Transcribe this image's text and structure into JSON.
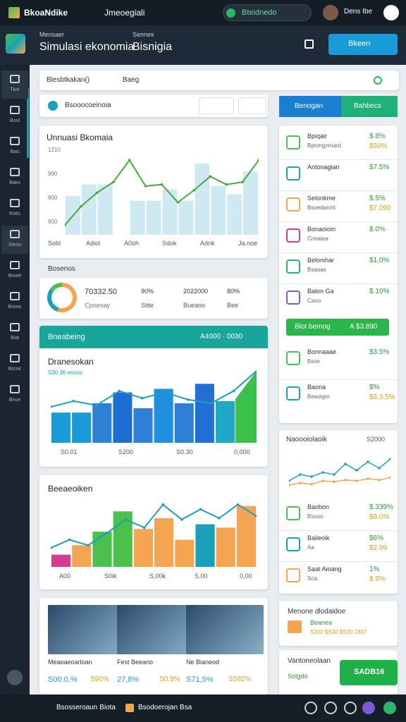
{
  "topbar": {
    "brand": "BkoaNdike",
    "tab": "Jmeoegiali",
    "status": "Bteidnedo",
    "user": "Dens Ibe"
  },
  "header": {
    "label1": "Mensaer",
    "title1": "Simulasi ekonomia",
    "label2": "Sennes",
    "title2": "Bisnigia",
    "button": "Bkeen"
  },
  "sidebar": [
    "Tkol",
    "Bool",
    "Bais",
    "Baks",
    "Rotls",
    "Srkoo",
    "Bnoet",
    "Bnoiis",
    "Blat",
    "Brcoir",
    "Bnoe"
  ],
  "search": {
    "text": "Blesbtkakan()",
    "filter": "Baeg"
  },
  "filter": "Bsooocoeinoia",
  "chart1": {
    "title": "Unnuasi Bkomaia",
    "ylabels": [
      "1210",
      "990",
      "900",
      "900"
    ],
    "categories": [
      "Sobl",
      "Adiol",
      "A0oh",
      "Sdok",
      "Adnk",
      "Ja.noe"
    ],
    "ylim": [
      0,
      100
    ],
    "bars": [
      48,
      62,
      62,
      0,
      42,
      42,
      56,
      42,
      88,
      60,
      50,
      78
    ],
    "line": [
      12,
      35,
      52,
      65,
      92,
      60,
      62,
      40,
      55,
      72,
      62,
      65,
      92
    ]
  },
  "summary": {
    "title": "Bosenos",
    "value": "70332.50",
    "sub": "Cpoeoay",
    "donut": [
      55,
      30,
      15
    ],
    "legend": [
      {
        "value": "90%",
        "label": "Sitte"
      },
      {
        "value": "2022000",
        "label": "Bueaoo"
      },
      {
        "value": "80%",
        "label": "Bee"
      }
    ]
  },
  "panel2": {
    "header": "Bneabeing",
    "header_right": "A4000 · 0030",
    "title": "Dranesokan",
    "legend": "S30 36 esons",
    "categories": [
      "S0.01",
      "S200",
      "S0.30",
      "0,000"
    ],
    "ylim": [
      0,
      100
    ],
    "bars": [
      42,
      42,
      55,
      70,
      48,
      75,
      55,
      82,
      58
    ],
    "colors": [
      "#1a9ad6",
      "#1a9ad6",
      "#2f7fd6",
      "#1b6fd0",
      "#2f7fd6",
      "#1f8fe0",
      "#2f7fd6",
      "#1f6fd6",
      "#20a8c8"
    ],
    "line": [
      50,
      58,
      52,
      72,
      62,
      70,
      60,
      55,
      72,
      100
    ]
  },
  "panel3": {
    "title": "Beeaeoiken",
    "categories": [
      "A00",
      "S0ik",
      "S,00k",
      "S,00",
      "0,00"
    ],
    "ylim": [
      0,
      100
    ],
    "bars": [
      18,
      32,
      52,
      82,
      56,
      72,
      40,
      63,
      58,
      90
    ],
    "colors": [
      "#d63c8c",
      "#f5a552",
      "#4cc04c",
      "#4cc04c",
      "#f5a552",
      "#f5a552",
      "#f5a552",
      "#1aa0b8",
      "#f5a552",
      "#f5a552"
    ],
    "line": [
      28,
      40,
      32,
      50,
      70,
      58,
      92,
      70,
      85,
      72,
      92,
      75
    ]
  },
  "products": [
    {
      "title": "Meaoaeoarloan",
      "value": "S00.0,%",
      "value2": "S90%"
    },
    {
      "title": "Fest Beeano",
      "value": "27,8%",
      "value2": "S0.9%"
    },
    {
      "title": "Ne Bianeod",
      "value": "S71,5%",
      "value2": "S592%"
    }
  ],
  "right": {
    "tabs": [
      "Benogan",
      "Bahbecs"
    ],
    "items1": [
      {
        "name": "Bpiqair",
        "sub": "Bpnmgnmant",
        "v1": "$.8%",
        "v2": "$50%"
      },
      {
        "name": "Antonagian",
        "v1": "$7.5%"
      },
      {
        "name": "Selonkme",
        "sub": "Bsoedaiont",
        "v1": "$.5%",
        "v2": "$7.090"
      },
      {
        "name": "Bonaoioin",
        "sub": "Cnoaiea",
        "v1": "$.0%"
      },
      {
        "name": "Belonihar",
        "sub": "Bsaoas",
        "v1": "$1.0%"
      },
      {
        "name": "Balon Ga",
        "sub": "Caoo",
        "v1": "$.10%"
      }
    ],
    "green": {
      "label": "Blot bemog",
      "value": "A $3.890"
    },
    "items2": [
      {
        "name": "Bonnaaae",
        "sub": "Bsse",
        "v1": "$3.5%"
      },
      {
        "name": "Baona",
        "sub": "Beaoigor",
        "v1": "$%",
        "v2": "$3.3.5%"
      }
    ],
    "chart": {
      "title": "Naoooiolaoik",
      "value": "S2000",
      "ylim": [
        0,
        100
      ],
      "line1": [
        30,
        45,
        40,
        50,
        45,
        70,
        55,
        75,
        60,
        82
      ],
      "line2": [
        20,
        25,
        22,
        30,
        28,
        32,
        30,
        35,
        32,
        38
      ]
    },
    "items3": [
      {
        "name": "Baobon",
        "sub": "Bsooo",
        "v1": "$.339%",
        "v2": "$9.0%"
      },
      {
        "name": "Baileoik",
        "sub": "Aa",
        "v1": "$6%",
        "v2": "$2.99"
      },
      {
        "name": "Saat Aioang",
        "sub": "Sca.",
        "v1": "1%",
        "v2": "$.9%"
      }
    ],
    "card2": {
      "title": "Menone dlodaidoe",
      "sub": "Beanea",
      "sub2": "S200 $S30 $S30 2807"
    },
    "card3": {
      "title": "Vantoneolaan",
      "sub": "Sotgdo",
      "button": "SADB16"
    }
  },
  "bottombar": [
    "Bsosseroaun Biota",
    "Bsodoerojan Bsa"
  ]
}
